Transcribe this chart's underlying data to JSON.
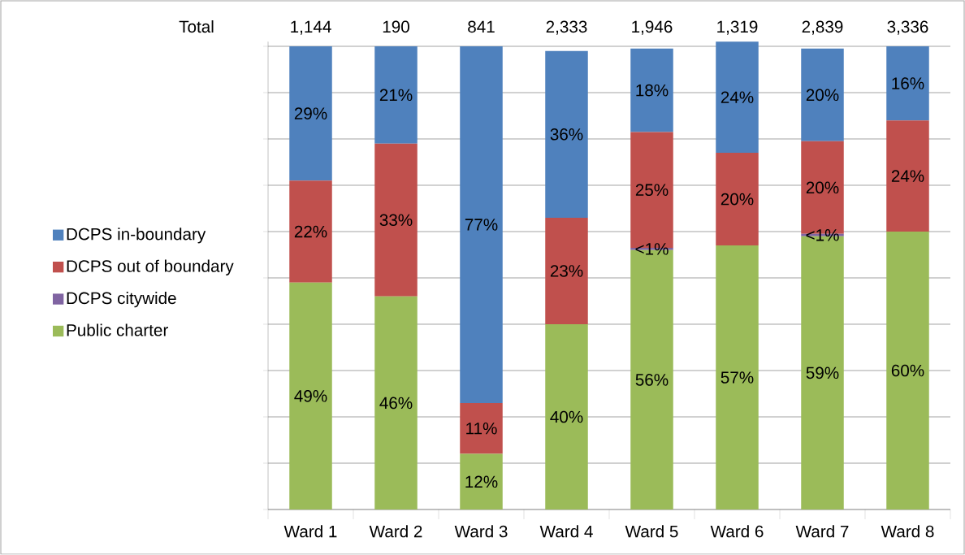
{
  "chart_data": {
    "type": "bar",
    "stacked": true,
    "categories": [
      "Ward 1",
      "Ward 2",
      "Ward 3",
      "Ward 4",
      "Ward 5",
      "Ward 6",
      "Ward 7",
      "Ward 8"
    ],
    "series": [
      {
        "name": "Public charter",
        "color": "#9bbb59",
        "values": [
          49,
          46,
          12,
          40,
          56,
          57,
          59,
          60
        ],
        "value_labels": [
          "49%",
          "46%",
          "12%",
          "40%",
          "56%",
          "57%",
          "59%",
          "60%"
        ]
      },
      {
        "name": "DCPS citywide",
        "color": "#8064a2",
        "values": [
          0,
          0,
          0,
          0,
          0.5,
          0,
          0.5,
          0
        ],
        "value_labels": [
          null,
          null,
          null,
          null,
          "<1%",
          null,
          "<1%",
          null
        ]
      },
      {
        "name": "DCPS out of boundary",
        "color": "#c0504d",
        "values": [
          22,
          33,
          11,
          23,
          25,
          20,
          20,
          24
        ],
        "value_labels": [
          "22%",
          "33%",
          "11%",
          "23%",
          "25%",
          "20%",
          "20%",
          "24%"
        ]
      },
      {
        "name": "DCPS in-boundary",
        "color": "#4f81bd",
        "values": [
          29,
          21,
          77,
          36,
          18,
          24,
          20,
          16
        ],
        "value_labels": [
          "29%",
          "21%",
          "77%",
          "36%",
          "18%",
          "24%",
          "20%",
          "16%"
        ]
      }
    ],
    "ylim": [
      0,
      101
    ],
    "yticks": [
      {
        "value": 0,
        "label": null
      },
      {
        "value": 10,
        "label": null
      },
      {
        "value": 20,
        "label": null
      },
      {
        "value": 30,
        "label": null
      },
      {
        "value": 40,
        "label": null
      },
      {
        "value": 50,
        "label": null
      },
      {
        "value": 60,
        "label": null
      },
      {
        "value": 70,
        "label": null
      },
      {
        "value": 80,
        "label": null
      },
      {
        "value": 90,
        "label": null
      },
      {
        "value": 100,
        "label": null
      }
    ],
    "tick_labels": "x",
    "grid": "y",
    "legend": "left",
    "annotations": [
      "Total",
      "1,144",
      "190",
      "841",
      "2,333",
      "1,946",
      "1,319",
      "2,839",
      "3,336"
    ]
  }
}
